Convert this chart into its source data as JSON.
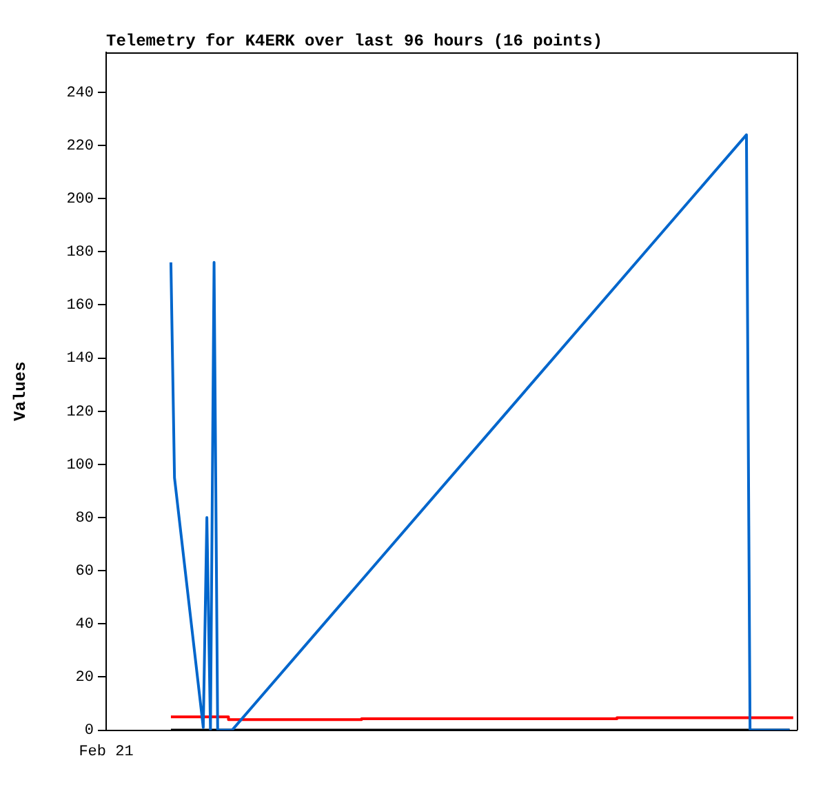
{
  "chart_data": {
    "type": "line",
    "title": "Telemetry for K4ERK over last 96 hours (16 points)",
    "ylabel": "Values",
    "annotations": [
      "Feb 21"
    ],
    "categories": [
      null,
      null,
      null,
      null,
      null,
      null,
      null,
      null,
      null,
      null,
      null,
      null,
      null,
      null,
      null,
      null,
      null,
      null,
      null,
      null,
      null,
      null,
      null,
      null,
      null,
      null,
      null,
      null,
      null,
      null,
      null,
      null,
      null,
      null,
      null,
      null,
      null,
      null,
      null,
      null,
      null,
      null,
      null,
      null,
      null,
      null,
      null,
      null,
      null,
      null,
      null,
      null,
      null,
      null,
      null,
      null,
      null,
      null,
      null,
      null,
      null,
      null,
      null,
      null,
      null,
      null,
      null,
      null,
      null,
      null,
      null,
      null,
      null,
      null,
      null,
      null,
      null,
      null,
      null,
      null,
      null,
      null,
      null,
      null,
      null,
      null,
      null,
      null,
      null,
      null,
      null,
      null,
      null,
      null,
      null,
      null,
      null,
      null,
      null,
      null,
      null,
      null,
      null,
      null,
      null,
      null,
      null,
      null,
      null,
      null,
      null,
      null,
      null,
      null,
      null,
      null,
      null,
      null,
      null,
      null,
      null,
      null,
      null,
      null,
      null,
      null,
      null,
      null,
      null,
      null,
      null,
      null,
      null,
      null,
      null,
      null,
      null,
      null,
      null,
      null,
      null,
      null,
      null,
      null,
      null,
      null,
      null,
      null,
      null,
      null,
      null,
      null,
      null,
      null,
      null,
      null,
      null,
      null,
      null,
      null,
      null,
      null,
      null,
      null,
      null,
      null,
      null,
      null,
      null,
      null,
      null,
      null,
      null,
      null,
      null,
      null,
      null,
      null,
      null,
      null,
      null,
      null,
      null,
      null,
      null,
      null,
      null,
      null,
      null,
      null,
      null,
      null,
      null
    ],
    "ylim": [
      0,
      255
    ],
    "yticks": [
      0,
      20,
      40,
      60,
      80,
      100,
      120,
      140,
      160,
      180,
      200,
      220,
      240
    ],
    "grid": false,
    "legend": false,
    "marker": "none",
    "line_style": "solid",
    "series": [
      {
        "color": "#0066cc",
        "values": [
          null,
          null,
          null,
          null,
          null,
          null,
          null,
          null,
          null,
          null,
          null,
          null,
          null,
          null,
          null,
          null,
          null,
          null,
          176,
          95,
          null,
          null,
          null,
          null,
          null,
          null,
          null,
          1,
          80,
          0,
          176,
          0,
          null,
          null,
          null,
          0,
          null,
          null,
          null,
          null,
          null,
          null,
          null,
          null,
          null,
          null,
          null,
          null,
          null,
          null,
          null,
          null,
          null,
          null,
          null,
          null,
          null,
          null,
          null,
          null,
          null,
          null,
          null,
          null,
          null,
          null,
          null,
          null,
          null,
          null,
          null,
          null,
          null,
          null,
          null,
          null,
          null,
          null,
          null,
          null,
          null,
          null,
          null,
          null,
          null,
          null,
          null,
          null,
          null,
          null,
          null,
          null,
          null,
          null,
          null,
          null,
          null,
          null,
          null,
          null,
          null,
          null,
          null,
          null,
          null,
          null,
          null,
          null,
          null,
          null,
          null,
          null,
          null,
          null,
          null,
          null,
          null,
          null,
          null,
          null,
          null,
          null,
          null,
          null,
          null,
          null,
          null,
          null,
          null,
          null,
          null,
          null,
          null,
          null,
          null,
          null,
          null,
          null,
          null,
          null,
          null,
          null,
          null,
          null,
          null,
          null,
          null,
          null,
          null,
          null,
          null,
          null,
          null,
          null,
          null,
          null,
          null,
          null,
          null,
          null,
          null,
          null,
          null,
          null,
          null,
          null,
          null,
          null,
          null,
          null,
          null,
          null,
          null,
          null,
          null,
          null,
          null,
          null,
          224,
          0,
          null,
          null,
          null,
          null,
          null,
          null,
          null,
          null,
          null,
          null,
          0,
          null,
          null
        ]
      },
      {
        "type": "step",
        "color": "#ff0000",
        "values": [
          null,
          null,
          null,
          null,
          null,
          null,
          null,
          null,
          null,
          null,
          null,
          null,
          null,
          null,
          null,
          null,
          null,
          null,
          5,
          null,
          null,
          null,
          null,
          null,
          null,
          null,
          null,
          null,
          null,
          null,
          null,
          null,
          5,
          null,
          4,
          null,
          null,
          null,
          null,
          null,
          null,
          null,
          null,
          null,
          null,
          null,
          null,
          null,
          null,
          null,
          null,
          null,
          null,
          null,
          null,
          null,
          null,
          null,
          null,
          null,
          null,
          null,
          null,
          null,
          null,
          null,
          null,
          null,
          null,
          null,
          null,
          4.3,
          null,
          null,
          null,
          null,
          null,
          null,
          null,
          null,
          null,
          null,
          null,
          null,
          null,
          null,
          null,
          null,
          null,
          null,
          null,
          null,
          null,
          null,
          null,
          null,
          null,
          null,
          null,
          null,
          null,
          null,
          null,
          null,
          null,
          null,
          null,
          null,
          null,
          null,
          null,
          null,
          null,
          null,
          null,
          null,
          null,
          null,
          null,
          null,
          null,
          null,
          null,
          null,
          null,
          null,
          null,
          null,
          null,
          null,
          null,
          null,
          null,
          null,
          null,
          null,
          null,
          null,
          null,
          null,
          null,
          null,
          4.7,
          null,
          null,
          null,
          null,
          null,
          null,
          null,
          null,
          null,
          null,
          null,
          null,
          null,
          null,
          null,
          null,
          null,
          null,
          null,
          null,
          null,
          null,
          null,
          null,
          null,
          null,
          null,
          null,
          null,
          null,
          null,
          null,
          null,
          null,
          null,
          null,
          null,
          null,
          null,
          null,
          null,
          null,
          null,
          null,
          null,
          null,
          null,
          null,
          4.7,
          null
        ]
      },
      {
        "color": "#000000",
        "values": [
          null,
          null,
          null,
          null,
          null,
          null,
          null,
          null,
          null,
          null,
          null,
          null,
          null,
          null,
          null,
          null,
          null,
          null,
          0,
          null,
          null,
          null,
          null,
          null,
          null,
          null,
          null,
          null,
          null,
          null,
          null,
          null,
          null,
          null,
          null,
          null,
          null,
          null,
          null,
          null,
          null,
          null,
          null,
          null,
          null,
          null,
          null,
          null,
          null,
          null,
          null,
          null,
          null,
          null,
          null,
          null,
          null,
          null,
          null,
          null,
          null,
          null,
          null,
          null,
          null,
          null,
          null,
          null,
          null,
          null,
          null,
          null,
          null,
          null,
          null,
          null,
          null,
          null,
          null,
          null,
          null,
          null,
          null,
          null,
          null,
          null,
          null,
          null,
          null,
          null,
          null,
          null,
          null,
          null,
          null,
          null,
          null,
          null,
          null,
          null,
          null,
          null,
          null,
          null,
          null,
          null,
          null,
          null,
          null,
          null,
          null,
          null,
          null,
          null,
          null,
          null,
          null,
          null,
          null,
          null,
          null,
          null,
          null,
          null,
          null,
          null,
          null,
          null,
          null,
          null,
          null,
          null,
          null,
          null,
          null,
          null,
          null,
          null,
          null,
          null,
          null,
          null,
          null,
          null,
          null,
          null,
          null,
          null,
          null,
          null,
          null,
          null,
          null,
          null,
          null,
          null,
          null,
          null,
          null,
          null,
          null,
          null,
          null,
          null,
          null,
          null,
          null,
          null,
          null,
          null,
          null,
          null,
          null,
          null,
          null,
          null,
          null,
          null,
          null,
          null,
          null,
          null,
          null,
          null,
          null,
          null,
          null,
          null,
          null,
          null,
          0,
          null,
          null
        ]
      }
    ]
  }
}
